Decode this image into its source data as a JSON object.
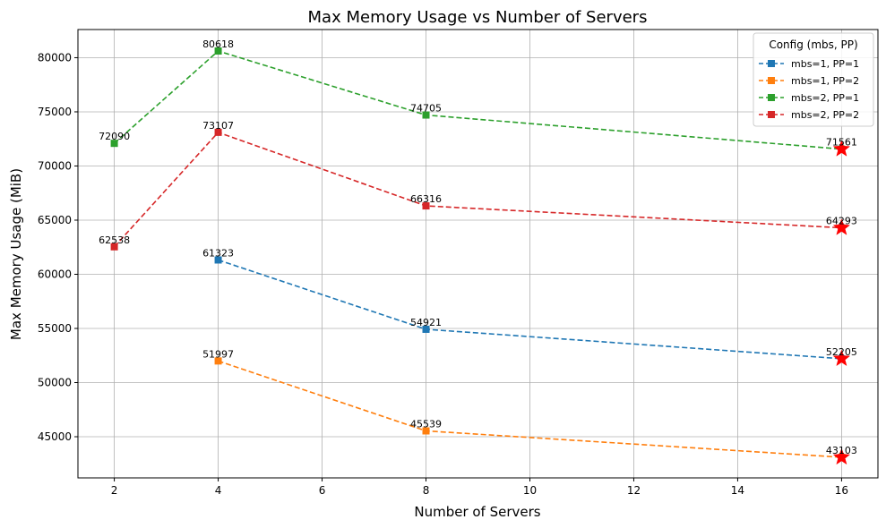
{
  "chart_data": {
    "type": "line",
    "title": "Max Memory Usage vs Number of Servers",
    "xlabel": "Number of Servers",
    "ylabel": "Max Memory Usage (MiB)",
    "xlim": [
      1.3,
      16.7
    ],
    "ylim": [
      41200,
      82600
    ],
    "xticks": [
      2,
      4,
      6,
      8,
      10,
      12,
      14,
      16
    ],
    "yticks": [
      45000,
      50000,
      55000,
      60000,
      65000,
      70000,
      75000,
      80000
    ],
    "grid": true,
    "legend": {
      "title": "Config (mbs, PP)",
      "position": "top-right"
    },
    "series": [
      {
        "name": "mbs=1, PP=1",
        "color": "#1f77b4",
        "x": [
          4,
          8,
          16
        ],
        "values": [
          61323,
          54921,
          52205
        ],
        "labels": [
          "61323",
          "54921",
          "52205"
        ]
      },
      {
        "name": "mbs=1, PP=2",
        "color": "#ff7f0e",
        "x": [
          4,
          8,
          16
        ],
        "values": [
          51997,
          45539,
          43103
        ],
        "labels": [
          "51997",
          "45539",
          "43103"
        ]
      },
      {
        "name": "mbs=2, PP=1",
        "color": "#2ca02c",
        "x": [
          2,
          4,
          8,
          16
        ],
        "values": [
          72090,
          80618,
          74705,
          71561
        ],
        "labels": [
          "72090",
          "80618",
          "74705",
          "71561"
        ]
      },
      {
        "name": "mbs=2, PP=2",
        "color": "#d62728",
        "x": [
          2,
          4,
          8,
          16
        ],
        "values": [
          62538,
          73107,
          66316,
          64293
        ],
        "labels": [
          "62538",
          "73107",
          "66316",
          "64293"
        ]
      }
    ],
    "highlight": {
      "x": 16,
      "marker": "star",
      "color": "#ff0000"
    }
  }
}
